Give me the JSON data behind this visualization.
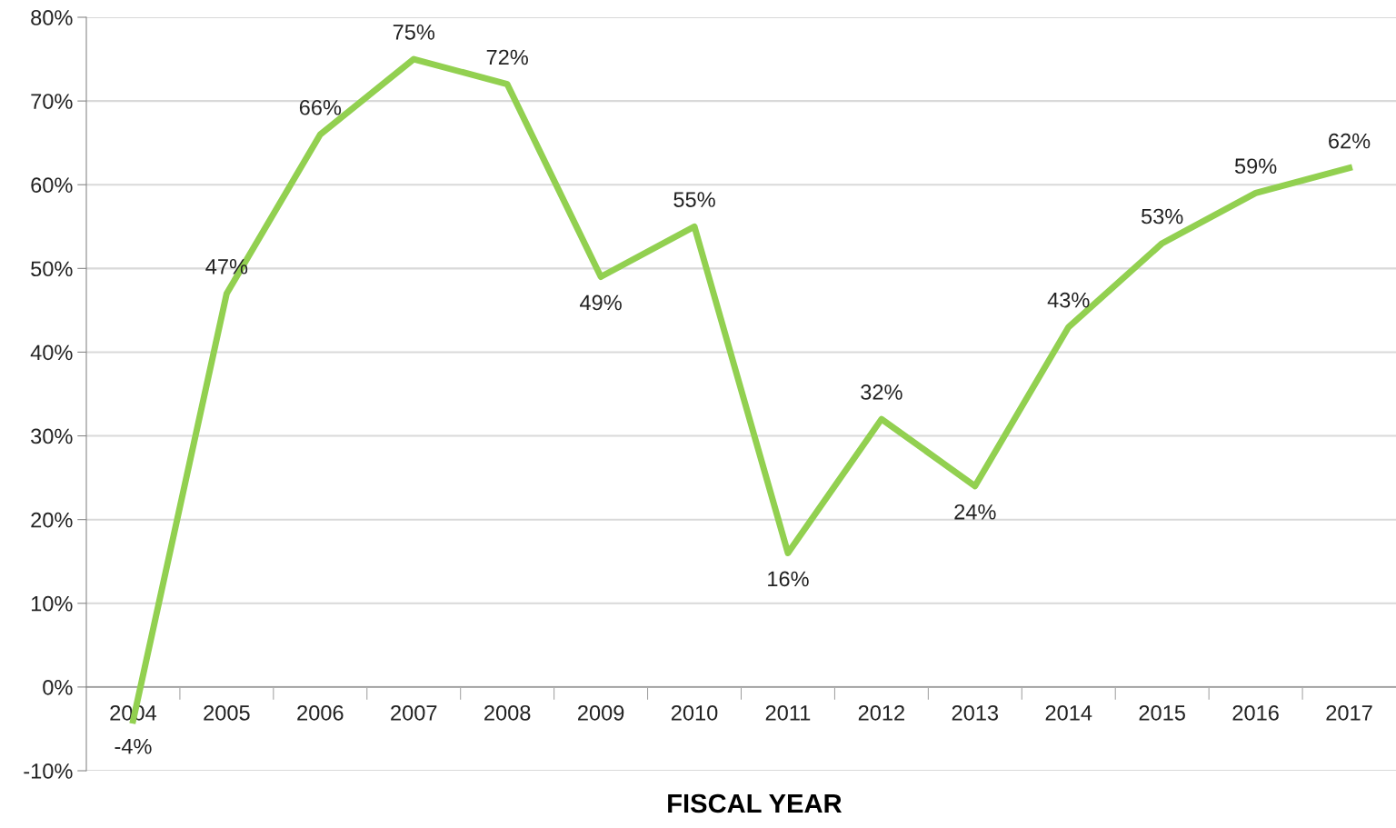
{
  "chart_data": {
    "type": "line",
    "xlabel": "FISCAL YEAR",
    "categories": [
      "2004",
      "2005",
      "2006",
      "2007",
      "2008",
      "2009",
      "2010",
      "2011",
      "2012",
      "2013",
      "2014",
      "2015",
      "2016",
      "2017"
    ],
    "series": [
      {
        "color": "#92d050",
        "values": [
          -4,
          47,
          66,
          75,
          72,
          49,
          55,
          16,
          32,
          24,
          43,
          53,
          59,
          62
        ],
        "value_labels": [
          "-4%",
          "47%",
          "66%",
          "75%",
          "72%",
          "49%",
          "55%",
          "16%",
          "32%",
          "24%",
          "43%",
          "53%",
          "59%",
          "62%"
        ]
      }
    ],
    "ylim": [
      -10,
      80
    ],
    "yticks": [
      {
        "value": -10,
        "label": "-10%"
      },
      {
        "value": 0,
        "label": "0%"
      },
      {
        "value": 10,
        "label": "10%"
      },
      {
        "value": 20,
        "label": "20%"
      },
      {
        "value": 30,
        "label": "30%"
      },
      {
        "value": 40,
        "label": "40%"
      },
      {
        "value": 50,
        "label": "50%"
      },
      {
        "value": 60,
        "label": "60%"
      },
      {
        "value": 70,
        "label": "70%"
      },
      {
        "value": 80,
        "label": "80%"
      }
    ],
    "grid": "y",
    "marker": "none",
    "line_style": "solid"
  }
}
